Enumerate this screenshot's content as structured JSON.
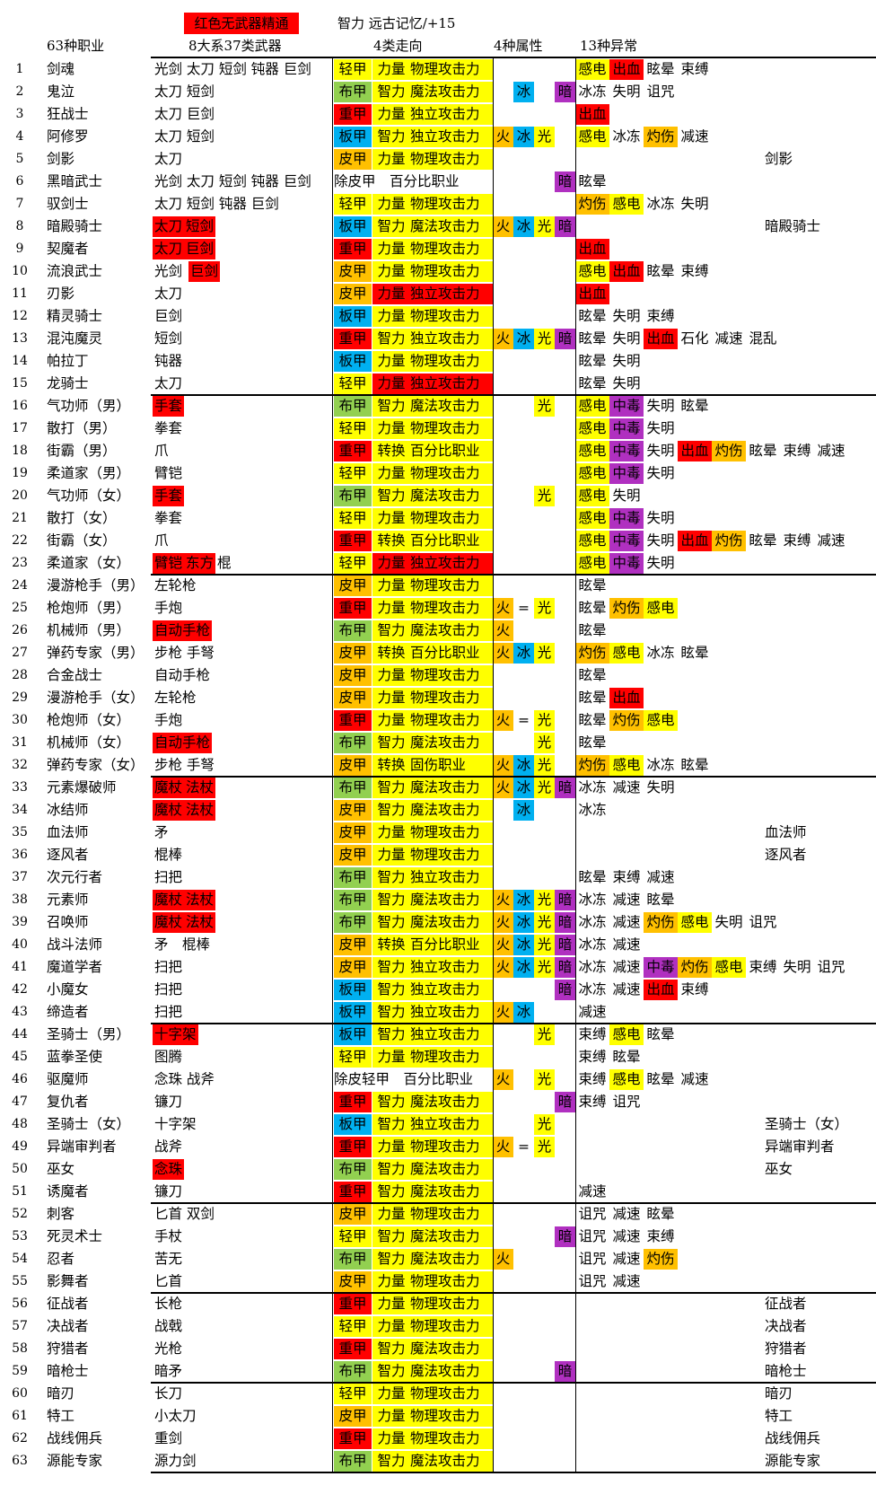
{
  "header": {
    "legend_red": "红色无武器精通",
    "note": "智力 远古记忆/+15",
    "col_class": "63种职业",
    "col_weapon": "8大系37类武器",
    "col_build": "4类走向",
    "col_element": "4种属性",
    "col_status": "13种异常"
  },
  "colors": {
    "red": "#ff0000",
    "yellow": "#ffff00",
    "green": "#92d050",
    "blue": "#00b0f0",
    "orange": "#ffc000",
    "purple": "#b030c0"
  },
  "rows": [
    {
      "n": "1",
      "cls": "剑魂",
      "w": [
        "光剑 太刀 短剑 钝器 巨剑"
      ],
      "a": "轻甲",
      "s": "力量",
      "sc": "物理攻击力",
      "st": [
        [
          "感电",
          "y"
        ],
        [
          "出血",
          "r"
        ],
        [
          "眩晕",
          ""
        ],
        [
          "束缚",
          ""
        ]
      ]
    },
    {
      "n": "2",
      "cls": "鬼泣",
      "w": [
        "太刀 短剑"
      ],
      "a": "布甲",
      "s": "智力",
      "sc": "魔法攻击力",
      "ice": 1,
      "dark": 1,
      "st": [
        [
          "冰冻",
          ""
        ],
        [
          "失明",
          ""
        ],
        [
          "诅咒",
          ""
        ]
      ]
    },
    {
      "n": "3",
      "cls": "狂战士",
      "w": [
        "太刀 巨剑"
      ],
      "a": "重甲",
      "s": "力量",
      "sc": "独立攻击力",
      "st": [
        [
          "出血",
          "r"
        ]
      ]
    },
    {
      "n": "4",
      "cls": "阿修罗",
      "w": [
        "太刀 短剑"
      ],
      "a": "板甲",
      "s": "智力",
      "sc": "独立攻击力",
      "fire": 1,
      "ice": 1,
      "light": 1,
      "st": [
        [
          "感电",
          "y"
        ],
        [
          "冰冻",
          ""
        ],
        [
          "灼伤",
          "o"
        ],
        [
          "减速",
          ""
        ]
      ]
    },
    {
      "n": "5",
      "cls": "剑影",
      "w": [
        "太刀"
      ],
      "a": "皮甲",
      "s": "力量",
      "sc": "物理攻击力",
      "st": [],
      "awk": "剑影"
    },
    {
      "n": "6",
      "cls": "黑暗武士",
      "w": [
        "光剑 太刀 短剑 钝器 巨剑"
      ],
      "plain": "除皮甲　百分比职业",
      "dark": 1,
      "st": [
        [
          "眩晕",
          ""
        ]
      ]
    },
    {
      "n": "7",
      "cls": "驭剑士",
      "w": [
        "太刀 短剑 钝器 巨剑"
      ],
      "a": "轻甲",
      "s": "力量",
      "sc": "物理攻击力",
      "st": [
        [
          "灼伤",
          "o"
        ],
        [
          "感电",
          "y"
        ],
        [
          "冰冻",
          ""
        ],
        [
          "失明",
          ""
        ]
      ]
    },
    {
      "n": "8",
      "cls": "暗殿骑士",
      "w": [
        "太刀",
        "短剑"
      ],
      "wr": 1,
      "a": "板甲",
      "s": "智力",
      "sc": "魔法攻击力",
      "fire": 1,
      "ice": 1,
      "light": 1,
      "dark": 1,
      "st": [],
      "awk": "暗殿骑士"
    },
    {
      "n": "9",
      "cls": "契魔者",
      "w": [
        "太刀",
        "巨剑"
      ],
      "wr": 1,
      "a": "重甲",
      "s": "力量",
      "sc": "物理攻击力",
      "st": [
        [
          "出血",
          "r"
        ]
      ]
    },
    {
      "n": "10",
      "cls": "流浪武士",
      "w": [
        "光剑",
        "巨剑"
      ],
      "wr": 2,
      "a": "皮甲",
      "s": "力量",
      "sc": "物理攻击力",
      "st": [
        [
          "感电",
          "y"
        ],
        [
          "出血",
          "r"
        ],
        [
          "眩晕",
          ""
        ],
        [
          "束缚",
          ""
        ]
      ]
    },
    {
      "n": "11",
      "cls": "刃影",
      "w": [
        "太刀"
      ],
      "a": "皮甲",
      "s": "力量",
      "sc": "独立攻击力",
      "sr": 1,
      "st": [
        [
          "出血",
          "r"
        ]
      ]
    },
    {
      "n": "12",
      "cls": "精灵骑士",
      "w": [
        "巨剑"
      ],
      "a": "板甲",
      "s": "力量",
      "sc": "物理攻击力",
      "st": [
        [
          "眩晕",
          ""
        ],
        [
          "失明",
          ""
        ],
        [
          "束缚",
          ""
        ]
      ]
    },
    {
      "n": "13",
      "cls": "混沌魔灵",
      "w": [
        "短剑"
      ],
      "a": "重甲",
      "s": "智力",
      "sc": "独立攻击力",
      "fire": 1,
      "ice": 1,
      "light": 1,
      "dark": 1,
      "st": [
        [
          "眩晕",
          ""
        ],
        [
          "失明",
          ""
        ],
        [
          "出血",
          "r"
        ],
        [
          "石化",
          ""
        ],
        [
          "减速",
          ""
        ],
        [
          "混乱",
          ""
        ]
      ]
    },
    {
      "n": "14",
      "cls": "帕拉丁",
      "w": [
        "钝器"
      ],
      "a": "板甲",
      "s": "力量",
      "sc": "物理攻击力",
      "st": [
        [
          "眩晕",
          ""
        ],
        [
          "失明",
          ""
        ]
      ]
    },
    {
      "n": "15",
      "cls": "龙骑士",
      "w": [
        "太刀"
      ],
      "a": "轻甲",
      "s": "力量",
      "sc": "独立攻击力",
      "sr": 1,
      "st": [
        [
          "眩晕",
          ""
        ],
        [
          "失明",
          ""
        ]
      ]
    },
    {
      "n": "16",
      "cls": "气功师（男）",
      "w": [
        "手套"
      ],
      "wr": 1,
      "a": "布甲",
      "s": "智力",
      "sc": "魔法攻击力",
      "light": 1,
      "st": [
        [
          "感电",
          "y"
        ],
        [
          "中毒",
          "p"
        ],
        [
          "失明",
          ""
        ],
        [
          "眩晕",
          ""
        ]
      ]
    },
    {
      "n": "17",
      "cls": "散打（男）",
      "w": [
        "拳套"
      ],
      "a": "轻甲",
      "s": "力量",
      "sc": "物理攻击力",
      "st": [
        [
          "感电",
          "y"
        ],
        [
          "中毒",
          "p"
        ],
        [
          "失明",
          ""
        ]
      ]
    },
    {
      "n": "18",
      "cls": "街霸（男）",
      "w": [
        "爪"
      ],
      "a": "重甲",
      "s": "转换",
      "sc": "百分比职业",
      "plainsc": 1,
      "st": [
        [
          "感电",
          "y"
        ],
        [
          "中毒",
          "p"
        ],
        [
          "失明",
          ""
        ],
        [
          "出血",
          "r"
        ],
        [
          "灼伤",
          "o"
        ],
        [
          "眩晕",
          ""
        ],
        [
          "束缚",
          ""
        ],
        [
          "减速",
          ""
        ]
      ]
    },
    {
      "n": "19",
      "cls": "柔道家（男）",
      "w": [
        "臂铠"
      ],
      "a": "轻甲",
      "s": "力量",
      "sc": "物理攻击力",
      "st": [
        [
          "感电",
          "y"
        ],
        [
          "中毒",
          "p"
        ],
        [
          "失明",
          ""
        ]
      ]
    },
    {
      "n": "20",
      "cls": "气功师（女）",
      "w": [
        "手套"
      ],
      "wr": 1,
      "a": "布甲",
      "s": "智力",
      "sc": "魔法攻击力",
      "light": 1,
      "st": [
        [
          "感电",
          "y"
        ],
        [
          "失明",
          ""
        ]
      ]
    },
    {
      "n": "21",
      "cls": "散打（女）",
      "w": [
        "拳套"
      ],
      "a": "轻甲",
      "s": "力量",
      "sc": "物理攻击力",
      "st": [
        [
          "感电",
          "y"
        ],
        [
          "中毒",
          "p"
        ],
        [
          "失明",
          ""
        ]
      ]
    },
    {
      "n": "22",
      "cls": "街霸（女）",
      "w": [
        "爪"
      ],
      "a": "重甲",
      "s": "转换",
      "sc": "百分比职业",
      "plainsc": 1,
      "st": [
        [
          "感电",
          "y"
        ],
        [
          "中毒",
          "p"
        ],
        [
          "失明",
          ""
        ],
        [
          "出血",
          "r"
        ],
        [
          "灼伤",
          "o"
        ],
        [
          "眩晕",
          ""
        ],
        [
          "束缚",
          ""
        ],
        [
          "减速",
          ""
        ]
      ]
    },
    {
      "n": "23",
      "cls": "柔道家（女）",
      "w": [
        "臂铠",
        "东方",
        "棍"
      ],
      "wr": 3,
      "a": "轻甲",
      "s": "力量",
      "sc": "独立攻击力",
      "sr": 1,
      "st": [
        [
          "感电",
          "y"
        ],
        [
          "中毒",
          "p"
        ],
        [
          "失明",
          ""
        ]
      ]
    },
    {
      "n": "24",
      "cls": "漫游枪手（男）",
      "w": [
        "左轮枪"
      ],
      "a": "皮甲",
      "s": "力量",
      "sc": "物理攻击力",
      "st": [
        [
          "眩晕",
          ""
        ]
      ]
    },
    {
      "n": "25",
      "cls": "枪炮师（男）",
      "w": [
        "手炮"
      ],
      "a": "重甲",
      "s": "力量",
      "sc": "物理攻击力",
      "fire": 1,
      "eq": 1,
      "light": 1,
      "st": [
        [
          "眩晕",
          ""
        ],
        [
          "灼伤",
          "o"
        ],
        [
          "感电",
          "y"
        ]
      ]
    },
    {
      "n": "26",
      "cls": "机械师（男）",
      "w": [
        "自动手枪"
      ],
      "wr": 1,
      "a": "布甲",
      "s": "智力",
      "sc": "魔法攻击力",
      "fire": 1,
      "st": [
        [
          "眩晕",
          ""
        ]
      ]
    },
    {
      "n": "27",
      "cls": "弹药专家（男）",
      "w": [
        "步枪 手弩"
      ],
      "a": "皮甲",
      "s": "转换",
      "sc": "百分比职业",
      "fire": 1,
      "ice": 1,
      "light": 1,
      "st": [
        [
          "灼伤",
          "o"
        ],
        [
          "感电",
          "y"
        ],
        [
          "冰冻",
          ""
        ],
        [
          "眩晕",
          ""
        ]
      ]
    },
    {
      "n": "28",
      "cls": "合金战士",
      "w": [
        "自动手枪"
      ],
      "a": "皮甲",
      "s": "力量",
      "sc": "物理攻击力",
      "st": [
        [
          "眩晕",
          ""
        ]
      ]
    },
    {
      "n": "29",
      "cls": "漫游枪手（女）",
      "w": [
        "左轮枪"
      ],
      "a": "皮甲",
      "s": "力量",
      "sc": "物理攻击力",
      "st": [
        [
          "眩晕",
          ""
        ],
        [
          "出血",
          "r"
        ]
      ]
    },
    {
      "n": "30",
      "cls": "枪炮师（女）",
      "w": [
        "手炮"
      ],
      "a": "重甲",
      "s": "力量",
      "sc": "物理攻击力",
      "fire": 1,
      "eq": 1,
      "light": 1,
      "st": [
        [
          "眩晕",
          ""
        ],
        [
          "灼伤",
          "o"
        ],
        [
          "感电",
          "y"
        ]
      ]
    },
    {
      "n": "31",
      "cls": "机械师（女）",
      "w": [
        "自动手枪"
      ],
      "wr": 1,
      "a": "布甲",
      "s": "智力",
      "sc": "魔法攻击力",
      "light": 1,
      "st": [
        [
          "眩晕",
          ""
        ]
      ]
    },
    {
      "n": "32",
      "cls": "弹药专家（女）",
      "w": [
        "步枪 手弩"
      ],
      "a": "皮甲",
      "s": "转换",
      "sc": "固伤职业",
      "fire": 1,
      "ice": 1,
      "light": 1,
      "st": [
        [
          "灼伤",
          "o"
        ],
        [
          "感电",
          "y"
        ],
        [
          "冰冻",
          ""
        ],
        [
          "眩晕",
          ""
        ]
      ]
    },
    {
      "n": "33",
      "cls": "元素爆破师",
      "w": [
        "魔杖",
        "法杖"
      ],
      "wr": 1,
      "a": "布甲",
      "s": "智力",
      "sc": "魔法攻击力",
      "fire": 1,
      "ice": 1,
      "light": 1,
      "dark": 1,
      "st": [
        [
          "冰冻",
          ""
        ],
        [
          "减速",
          ""
        ],
        [
          "失明",
          ""
        ]
      ]
    },
    {
      "n": "34",
      "cls": "冰结师",
      "w": [
        "魔杖",
        "法杖"
      ],
      "wr": 1,
      "a": "皮甲",
      "s": "智力",
      "sc": "魔法攻击力",
      "ice": 1,
      "st": [
        [
          "冰冻",
          ""
        ]
      ]
    },
    {
      "n": "35",
      "cls": "血法师",
      "w": [
        "矛"
      ],
      "a": "皮甲",
      "s": "力量",
      "sc": "物理攻击力",
      "st": [],
      "awk": "血法师"
    },
    {
      "n": "36",
      "cls": "逐风者",
      "w": [
        "棍棒"
      ],
      "a": "皮甲",
      "s": "力量",
      "sc": "物理攻击力",
      "st": [],
      "awk": "逐风者"
    },
    {
      "n": "37",
      "cls": "次元行者",
      "w": [
        "扫把"
      ],
      "a": "布甲",
      "s": "智力",
      "sc": "独立攻击力",
      "st": [
        [
          "眩晕",
          ""
        ],
        [
          "束缚",
          ""
        ],
        [
          "减速",
          ""
        ]
      ]
    },
    {
      "n": "38",
      "cls": "元素师",
      "w": [
        "魔杖",
        "法杖"
      ],
      "wr": 1,
      "a": "布甲",
      "s": "智力",
      "sc": "魔法攻击力",
      "fire": 1,
      "ice": 1,
      "light": 1,
      "dark": 1,
      "st": [
        [
          "冰冻",
          ""
        ],
        [
          "减速",
          ""
        ],
        [
          "眩晕",
          ""
        ]
      ]
    },
    {
      "n": "39",
      "cls": "召唤师",
      "w": [
        "魔杖",
        "法杖"
      ],
      "wr": 1,
      "a": "布甲",
      "s": "智力",
      "sc": "魔法攻击力",
      "fire": 1,
      "ice": 1,
      "light": 1,
      "dark": 1,
      "st": [
        [
          "冰冻",
          ""
        ],
        [
          "减速",
          ""
        ],
        [
          "灼伤",
          "o"
        ],
        [
          "感电",
          "y"
        ],
        [
          "失明",
          ""
        ],
        [
          "诅咒",
          ""
        ]
      ]
    },
    {
      "n": "40",
      "cls": "战斗法师",
      "w": [
        "矛　棍棒"
      ],
      "a": "皮甲",
      "s": "转换",
      "sc": "百分比职业",
      "fire": 1,
      "ice": 1,
      "light": 1,
      "dark": 1,
      "st": [
        [
          "冰冻",
          ""
        ],
        [
          "减速",
          ""
        ]
      ]
    },
    {
      "n": "41",
      "cls": "魔道学者",
      "w": [
        "扫把"
      ],
      "a": "皮甲",
      "s": "智力",
      "sc": "独立攻击力",
      "fire": 1,
      "ice": 1,
      "light": 1,
      "dark": 1,
      "st": [
        [
          "冰冻",
          ""
        ],
        [
          "减速",
          ""
        ],
        [
          "中毒",
          "p"
        ],
        [
          "灼伤",
          "o"
        ],
        [
          "感电",
          "y"
        ],
        [
          "束缚",
          ""
        ],
        [
          "失明",
          ""
        ],
        [
          "诅咒",
          ""
        ]
      ]
    },
    {
      "n": "42",
      "cls": "小魔女",
      "w": [
        "扫把"
      ],
      "a": "板甲",
      "s": "智力",
      "sc": "独立攻击力",
      "dark": 1,
      "st": [
        [
          "冰冻",
          ""
        ],
        [
          "减速",
          ""
        ],
        [
          "出血",
          "r"
        ],
        [
          "束缚",
          ""
        ]
      ]
    },
    {
      "n": "43",
      "cls": "缔造者",
      "w": [
        "扫把"
      ],
      "a": "板甲",
      "s": "智力",
      "sc": "独立攻击力",
      "fire": 1,
      "ice": 1,
      "st": [
        [
          "减速",
          ""
        ]
      ]
    },
    {
      "n": "44",
      "cls": "圣骑士（男）",
      "w": [
        "十字架"
      ],
      "wr": 1,
      "a": "板甲",
      "s": "智力",
      "sc": "独立攻击力",
      "light": 1,
      "st": [
        [
          "束缚",
          ""
        ],
        [
          "感电",
          "y"
        ],
        [
          "眩晕",
          ""
        ]
      ]
    },
    {
      "n": "45",
      "cls": "蓝拳圣使",
      "w": [
        "图腾"
      ],
      "a": "轻甲",
      "s": "力量",
      "sc": "物理攻击力",
      "st": [
        [
          "束缚",
          ""
        ],
        [
          "眩晕",
          ""
        ]
      ]
    },
    {
      "n": "46",
      "cls": "驱魔师",
      "w": [
        "念珠 战斧"
      ],
      "plain": "除皮轻甲　百分比职业",
      "fire": 1,
      "light": 1,
      "st": [
        [
          "束缚",
          ""
        ],
        [
          "感电",
          "y"
        ],
        [
          "眩晕",
          ""
        ],
        [
          "减速",
          ""
        ]
      ]
    },
    {
      "n": "47",
      "cls": "复仇者",
      "w": [
        "镰刀"
      ],
      "a": "重甲",
      "s": "智力",
      "sc": "魔法攻击力",
      "dark": 1,
      "st": [
        [
          "束缚",
          ""
        ],
        [
          "诅咒",
          ""
        ]
      ]
    },
    {
      "n": "48",
      "cls": "圣骑士（女）",
      "w": [
        "十字架"
      ],
      "a": "板甲",
      "s": "智力",
      "sc": "独立攻击力",
      "light": 1,
      "st": [],
      "awk": "圣骑士（女）"
    },
    {
      "n": "49",
      "cls": "异端审判者",
      "w": [
        "战斧"
      ],
      "a": "重甲",
      "s": "力量",
      "sc": "物理攻击力",
      "fire": 1,
      "eq": 1,
      "light": 1,
      "st": [],
      "awk": "异端审判者"
    },
    {
      "n": "50",
      "cls": "巫女",
      "w": [
        "念珠"
      ],
      "wr": 1,
      "a": "布甲",
      "s": "智力",
      "sc": "魔法攻击力",
      "st": [],
      "awk": "巫女"
    },
    {
      "n": "51",
      "cls": "诱魔者",
      "w": [
        "镰刀"
      ],
      "a": "重甲",
      "s": "智力",
      "sc": "魔法攻击力",
      "st": [
        [
          "减速",
          ""
        ]
      ]
    },
    {
      "n": "52",
      "cls": "刺客",
      "w": [
        "匕首 双剑"
      ],
      "a": "皮甲",
      "s": "力量",
      "sc": "物理攻击力",
      "st": [
        [
          "诅咒",
          ""
        ],
        [
          "减速",
          ""
        ],
        [
          "眩晕",
          ""
        ]
      ]
    },
    {
      "n": "53",
      "cls": "死灵术士",
      "w": [
        "手杖"
      ],
      "a": "轻甲",
      "s": "智力",
      "sc": "魔法攻击力",
      "dark": 1,
      "st": [
        [
          "诅咒",
          ""
        ],
        [
          "减速",
          ""
        ],
        [
          "束缚",
          ""
        ]
      ]
    },
    {
      "n": "54",
      "cls": "忍者",
      "w": [
        "苦无"
      ],
      "a": "布甲",
      "s": "智力",
      "sc": "魔法攻击力",
      "fire": 1,
      "st": [
        [
          "诅咒",
          ""
        ],
        [
          "减速",
          ""
        ],
        [
          "灼伤",
          "o"
        ]
      ]
    },
    {
      "n": "55",
      "cls": "影舞者",
      "w": [
        "匕首"
      ],
      "a": "皮甲",
      "s": "力量",
      "sc": "物理攻击力",
      "st": [
        [
          "诅咒",
          ""
        ],
        [
          "减速",
          ""
        ]
      ]
    },
    {
      "n": "56",
      "cls": "征战者",
      "w": [
        "长枪"
      ],
      "a": "重甲",
      "s": "力量",
      "sc": "物理攻击力",
      "st": [],
      "awk": "征战者"
    },
    {
      "n": "57",
      "cls": "决战者",
      "w": [
        "战戟"
      ],
      "a": "轻甲",
      "s": "力量",
      "sc": "物理攻击力",
      "st": [],
      "awk": "决战者"
    },
    {
      "n": "58",
      "cls": "狩猎者",
      "w": [
        "光枪"
      ],
      "a": "重甲",
      "s": "智力",
      "sc": "魔法攻击力",
      "st": [],
      "awk": "狩猎者"
    },
    {
      "n": "59",
      "cls": "暗枪士",
      "w": [
        "暗矛"
      ],
      "a": "布甲",
      "s": "智力",
      "sc": "魔法攻击力",
      "dark": 1,
      "st": [],
      "awk": "暗枪士"
    },
    {
      "n": "60",
      "cls": "暗刃",
      "w": [
        "长刀"
      ],
      "a": "轻甲",
      "s": "力量",
      "sc": "物理攻击力",
      "st": [],
      "awk": "暗刃"
    },
    {
      "n": "61",
      "cls": "特工",
      "w": [
        "小太刀"
      ],
      "a": "皮甲",
      "s": "力量",
      "sc": "物理攻击力",
      "st": [],
      "awk": "特工"
    },
    {
      "n": "62",
      "cls": "战线佣兵",
      "w": [
        "重剑"
      ],
      "a": "重甲",
      "s": "力量",
      "sc": "物理攻击力",
      "st": [],
      "awk": "战线佣兵"
    },
    {
      "n": "63",
      "cls": "源能专家",
      "w": [
        "源力剑"
      ],
      "a": "布甲",
      "s": "智力",
      "sc": "魔法攻击力",
      "st": [],
      "awk": "源能专家"
    }
  ],
  "labels": {
    "fire": "火",
    "ice": "冰",
    "light": "光",
    "dark": "暗",
    "eq": "="
  }
}
